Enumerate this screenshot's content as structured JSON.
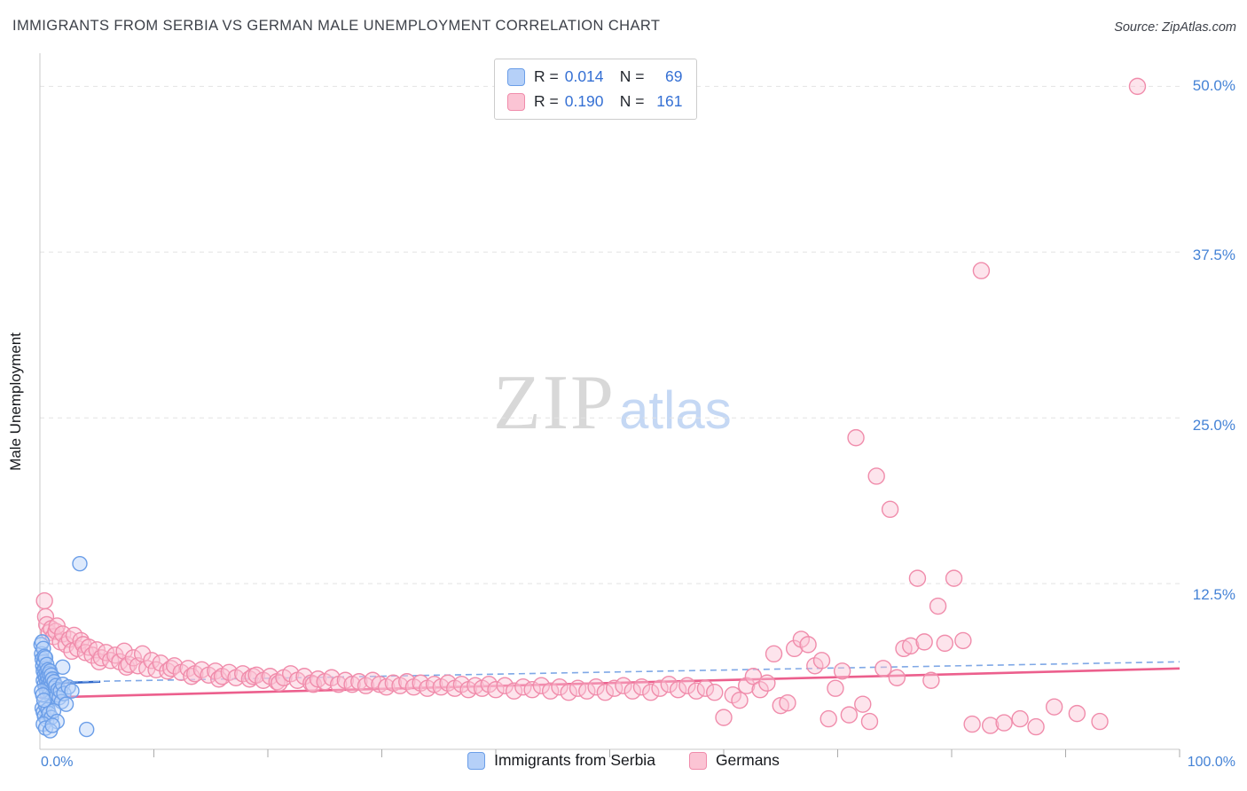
{
  "header": {
    "title": "IMMIGRANTS FROM SERBIA VS GERMAN MALE UNEMPLOYMENT CORRELATION CHART",
    "source": "Source: ZipAtlas.com"
  },
  "legend_box": {
    "r_label": "R =",
    "n_label": "N =",
    "rows": [
      {
        "series": "Immigrants from Serbia",
        "r": "0.014",
        "n": "69"
      },
      {
        "series": "Germans",
        "r": "0.190",
        "n": "161"
      }
    ]
  },
  "axes": {
    "y_label": "Male Unemployment",
    "y_ticks": [
      "50.0%",
      "37.5%",
      "25.0%",
      "12.5%"
    ],
    "x_min": "0.0%",
    "x_max": "100.0%"
  },
  "watermark": {
    "part1": "ZIP",
    "part2": "atlas"
  },
  "bottom_legend": {
    "items": [
      {
        "label": "Immigrants from Serbia"
      },
      {
        "label": "Germans"
      }
    ]
  },
  "colors": {
    "value_blue": "#3570d4",
    "tick_label_blue": "#4583d6",
    "serbia_fill": "#b5d0f8",
    "serbia_stroke": "#6b9ee8",
    "germans_fill": "#fbc4d4",
    "germans_stroke": "#f08cab",
    "trend_pink": "#ec5f8d",
    "trend_blue": "#2e66c9",
    "trend_blue_dashed": "#7fa8e6",
    "gridline": "#e3e3e3",
    "axis_line": "#c9c9c9"
  },
  "chart_data": {
    "type": "scatter",
    "title": "IMMIGRANTS FROM SERBIA VS GERMAN MALE UNEMPLOYMENT CORRELATION CHART",
    "xlabel": "",
    "ylabel": "Male Unemployment",
    "x_range": [
      0,
      100
    ],
    "y_range": [
      0,
      52.5
    ],
    "x_ticks": [
      10,
      20,
      30,
      40,
      50,
      60,
      70,
      80,
      90,
      100
    ],
    "gridlines": [
      12.5,
      25,
      37.5,
      50
    ],
    "grid": "horizontal-dashed",
    "legend_position": "bottom-center",
    "series": [
      {
        "name": "Immigrants from Serbia",
        "R": 0.014,
        "N": 69,
        "fill": "#b5d0f8",
        "stroke": "#6b9ee8",
        "radius": 8,
        "points": [
          [
            0.1,
            7.9
          ],
          [
            0.15,
            7.2
          ],
          [
            0.2,
            8.1
          ],
          [
            0.2,
            6.8
          ],
          [
            0.25,
            6.3
          ],
          [
            0.3,
            7.6
          ],
          [
            0.3,
            5.9
          ],
          [
            0.3,
            5.2
          ],
          [
            0.35,
            6.6
          ],
          [
            0.4,
            7.0
          ],
          [
            0.4,
            5.6
          ],
          [
            0.4,
            4.9
          ],
          [
            0.45,
            6.1
          ],
          [
            0.5,
            6.9
          ],
          [
            0.5,
            5.4
          ],
          [
            0.5,
            4.6
          ],
          [
            0.55,
            5.8
          ],
          [
            0.6,
            6.4
          ],
          [
            0.6,
            5.1
          ],
          [
            0.6,
            4.3
          ],
          [
            0.65,
            5.5
          ],
          [
            0.7,
            6.0
          ],
          [
            0.7,
            4.8
          ],
          [
            0.75,
            5.3
          ],
          [
            0.8,
            5.7
          ],
          [
            0.8,
            4.5
          ],
          [
            0.85,
            5.0
          ],
          [
            0.9,
            5.9
          ],
          [
            0.9,
            4.2
          ],
          [
            0.95,
            5.2
          ],
          [
            1.0,
            5.6
          ],
          [
            1.0,
            4.0
          ],
          [
            1.05,
            4.9
          ],
          [
            1.1,
            5.3
          ],
          [
            1.1,
            3.8
          ],
          [
            1.2,
            4.6
          ],
          [
            1.25,
            5.1
          ],
          [
            1.3,
            4.3
          ],
          [
            1.4,
            4.8
          ],
          [
            1.5,
            4.1
          ],
          [
            1.6,
            4.5
          ],
          [
            1.7,
            3.9
          ],
          [
            1.8,
            4.4
          ],
          [
            1.9,
            3.6
          ],
          [
            2.0,
            4.9
          ],
          [
            2.1,
            4.2
          ],
          [
            2.3,
            3.4
          ],
          [
            2.5,
            4.7
          ],
          [
            0.2,
            3.1
          ],
          [
            0.3,
            2.8
          ],
          [
            0.4,
            2.5
          ],
          [
            0.5,
            3.3
          ],
          [
            0.6,
            2.2
          ],
          [
            0.7,
            3.0
          ],
          [
            0.8,
            2.7
          ],
          [
            1.0,
            2.4
          ],
          [
            1.2,
            2.9
          ],
          [
            1.5,
            2.1
          ],
          [
            0.3,
            1.9
          ],
          [
            0.5,
            1.6
          ],
          [
            0.9,
            1.4
          ],
          [
            1.1,
            1.8
          ],
          [
            3.5,
            14.0
          ],
          [
            4.1,
            1.5
          ],
          [
            2.8,
            4.4
          ],
          [
            0.15,
            4.4
          ],
          [
            0.25,
            4.1
          ],
          [
            0.35,
            3.7
          ],
          [
            2.0,
            6.2
          ]
        ]
      },
      {
        "name": "Germans",
        "R": 0.19,
        "N": 161,
        "fill": "#fbc4d4",
        "stroke": "#f08cab",
        "radius": 9,
        "points": [
          [
            0.4,
            11.2
          ],
          [
            0.5,
            10.0
          ],
          [
            0.6,
            9.4
          ],
          [
            0.8,
            8.8
          ],
          [
            1.0,
            9.1
          ],
          [
            1.2,
            8.5
          ],
          [
            1.4,
            8.9
          ],
          [
            1.5,
            9.3
          ],
          [
            1.8,
            8.1
          ],
          [
            2.0,
            8.7
          ],
          [
            2.3,
            7.9
          ],
          [
            2.6,
            8.3
          ],
          [
            2.8,
            7.4
          ],
          [
            3.0,
            8.6
          ],
          [
            3.3,
            7.6
          ],
          [
            3.6,
            8.2
          ],
          [
            3.8,
            7.9
          ],
          [
            4.0,
            7.3
          ],
          [
            4.3,
            7.7
          ],
          [
            4.6,
            7.1
          ],
          [
            5.0,
            7.5
          ],
          [
            5.2,
            6.6
          ],
          [
            5.4,
            6.9
          ],
          [
            5.8,
            7.3
          ],
          [
            6.2,
            6.7
          ],
          [
            6.6,
            7.1
          ],
          [
            7.0,
            6.6
          ],
          [
            7.4,
            7.4
          ],
          [
            7.6,
            6.2
          ],
          [
            7.8,
            6.4
          ],
          [
            8.2,
            6.9
          ],
          [
            8.6,
            6.3
          ],
          [
            9.0,
            7.2
          ],
          [
            9.4,
            6.1
          ],
          [
            9.8,
            6.7
          ],
          [
            10.2,
            6.0
          ],
          [
            10.6,
            6.5
          ],
          [
            11.2,
            5.9
          ],
          [
            11.5,
            6.1
          ],
          [
            11.8,
            6.3
          ],
          [
            12.4,
            5.8
          ],
          [
            13.0,
            6.1
          ],
          [
            13.3,
            5.5
          ],
          [
            13.6,
            5.7
          ],
          [
            14.2,
            6.0
          ],
          [
            14.8,
            5.6
          ],
          [
            15.4,
            5.9
          ],
          [
            15.7,
            5.3
          ],
          [
            16.0,
            5.5
          ],
          [
            16.6,
            5.8
          ],
          [
            17.2,
            5.4
          ],
          [
            17.8,
            5.7
          ],
          [
            18.4,
            5.3
          ],
          [
            18.7,
            5.5
          ],
          [
            19.0,
            5.6
          ],
          [
            19.6,
            5.2
          ],
          [
            20.2,
            5.5
          ],
          [
            20.8,
            5.1
          ],
          [
            21.0,
            5.0
          ],
          [
            21.4,
            5.4
          ],
          [
            22.0,
            5.7
          ],
          [
            22.6,
            5.2
          ],
          [
            23.2,
            5.5
          ],
          [
            23.8,
            5.0
          ],
          [
            24.0,
            4.9
          ],
          [
            24.4,
            5.3
          ],
          [
            25.0,
            5.1
          ],
          [
            25.6,
            5.4
          ],
          [
            26.2,
            4.9
          ],
          [
            26.8,
            5.2
          ],
          [
            27.4,
            4.9
          ],
          [
            28.0,
            5.1
          ],
          [
            28.6,
            4.8
          ],
          [
            29.2,
            5.2
          ],
          [
            29.8,
            4.9
          ],
          [
            30.4,
            4.7
          ],
          [
            31.0,
            5.0
          ],
          [
            31.6,
            4.8
          ],
          [
            32.2,
            5.1
          ],
          [
            32.8,
            4.7
          ],
          [
            33.4,
            5.0
          ],
          [
            34.0,
            4.6
          ],
          [
            34.6,
            4.9
          ],
          [
            35.2,
            4.7
          ],
          [
            35.8,
            5.0
          ],
          [
            36.4,
            4.6
          ],
          [
            37.0,
            4.9
          ],
          [
            37.6,
            4.5
          ],
          [
            38.2,
            4.8
          ],
          [
            38.8,
            4.6
          ],
          [
            39.4,
            4.9
          ],
          [
            40.0,
            4.5
          ],
          [
            40.8,
            4.8
          ],
          [
            41.6,
            4.4
          ],
          [
            42.4,
            4.7
          ],
          [
            43.2,
            4.5
          ],
          [
            44.0,
            4.8
          ],
          [
            44.8,
            4.4
          ],
          [
            45.6,
            4.7
          ],
          [
            46.4,
            4.3
          ],
          [
            47.2,
            4.6
          ],
          [
            48.0,
            4.4
          ],
          [
            48.8,
            4.7
          ],
          [
            49.6,
            4.3
          ],
          [
            50.4,
            4.6
          ],
          [
            51.2,
            4.8
          ],
          [
            52.0,
            4.4
          ],
          [
            52.8,
            4.7
          ],
          [
            53.6,
            4.3
          ],
          [
            54.4,
            4.6
          ],
          [
            55.2,
            4.9
          ],
          [
            56.0,
            4.5
          ],
          [
            56.8,
            4.8
          ],
          [
            57.6,
            4.4
          ],
          [
            58.4,
            4.6
          ],
          [
            59.2,
            4.3
          ],
          [
            60.0,
            2.4
          ],
          [
            60.8,
            4.1
          ],
          [
            61.4,
            3.7
          ],
          [
            62.0,
            4.8
          ],
          [
            62.6,
            5.5
          ],
          [
            63.2,
            4.5
          ],
          [
            63.8,
            5.0
          ],
          [
            64.4,
            7.2
          ],
          [
            65.0,
            3.3
          ],
          [
            65.6,
            3.5
          ],
          [
            66.2,
            7.6
          ],
          [
            66.8,
            8.3
          ],
          [
            67.4,
            7.9
          ],
          [
            68.0,
            6.3
          ],
          [
            68.6,
            6.7
          ],
          [
            69.2,
            2.3
          ],
          [
            69.8,
            4.6
          ],
          [
            70.4,
            5.9
          ],
          [
            71.0,
            2.6
          ],
          [
            71.6,
            23.5
          ],
          [
            72.2,
            3.4
          ],
          [
            72.8,
            2.1
          ],
          [
            73.4,
            20.6
          ],
          [
            74.0,
            6.1
          ],
          [
            74.6,
            18.1
          ],
          [
            75.2,
            5.4
          ],
          [
            75.8,
            7.6
          ],
          [
            76.4,
            7.8
          ],
          [
            77.0,
            12.9
          ],
          [
            77.6,
            8.1
          ],
          [
            78.2,
            5.2
          ],
          [
            78.8,
            10.8
          ],
          [
            79.4,
            8.0
          ],
          [
            80.2,
            12.9
          ],
          [
            81.0,
            8.2
          ],
          [
            81.8,
            1.9
          ],
          [
            82.6,
            36.1
          ],
          [
            83.4,
            1.8
          ],
          [
            84.6,
            2.0
          ],
          [
            86.0,
            2.3
          ],
          [
            87.4,
            1.7
          ],
          [
            89.0,
            3.2
          ],
          [
            91.0,
            2.7
          ],
          [
            93.0,
            2.1
          ],
          [
            96.3,
            50.0
          ]
        ]
      }
    ],
    "trend_lines": [
      {
        "series": "Immigrants from Serbia",
        "style": "solid",
        "color": "#2e66c9",
        "width": 2.6,
        "from": [
          0,
          4.95
        ],
        "to": [
          5.3,
          5.1
        ]
      },
      {
        "series": "Immigrants from Serbia (extrapolated)",
        "style": "dashed",
        "color": "#7fa8e6",
        "width": 1.6,
        "from": [
          0,
          5.05
        ],
        "to": [
          100,
          6.6
        ]
      },
      {
        "series": "Germans",
        "style": "solid",
        "color": "#ec5f8d",
        "width": 2.6,
        "from": [
          0,
          3.9
        ],
        "to": [
          100,
          6.1
        ]
      }
    ]
  }
}
